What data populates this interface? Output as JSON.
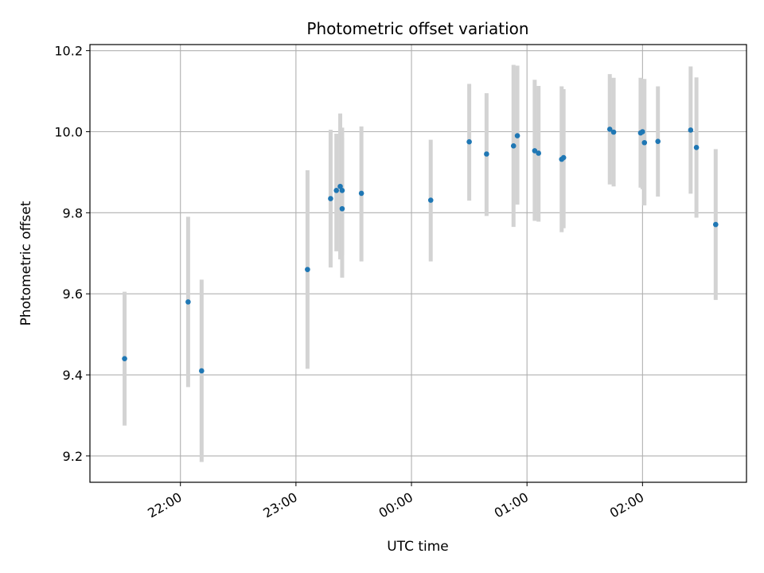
{
  "chart_data": {
    "type": "scatter",
    "title": "Photometric offset variation",
    "xlabel": "UTC time",
    "ylabel": "Photometric offset",
    "x_unit": "UTC time (HH:MM), night spanning midnight",
    "xlim": [
      "21:13",
      "02:54"
    ],
    "ylim": [
      9.135,
      10.215
    ],
    "x_ticks": [
      "22:00",
      "23:00",
      "00:00",
      "01:00",
      "02:00"
    ],
    "y_ticks": [
      9.2,
      9.4,
      9.6,
      9.8,
      10.0,
      10.2
    ],
    "y_tick_labels": [
      "9.2",
      "9.4",
      "9.6",
      "9.8",
      "10.0",
      "10.2"
    ],
    "grid": true,
    "marker_color": "#1f77b4",
    "errorbar_color": "#d3d3d3",
    "points": [
      {
        "x": "21:31",
        "y": 9.44,
        "yerr": [
          9.275,
          9.605
        ]
      },
      {
        "x": "22:04",
        "y": 9.58,
        "yerr": [
          9.37,
          9.79
        ]
      },
      {
        "x": "22:11",
        "y": 9.41,
        "yerr": [
          9.185,
          9.635
        ]
      },
      {
        "x": "23:06",
        "y": 9.66,
        "yerr": [
          9.415,
          9.905
        ]
      },
      {
        "x": "23:18",
        "y": 9.835,
        "yerr": [
          9.665,
          10.005
        ]
      },
      {
        "x": "23:21",
        "y": 9.855,
        "yerr": [
          9.705,
          9.995
        ]
      },
      {
        "x": "23:23",
        "y": 9.865,
        "yerr": [
          9.685,
          10.045
        ]
      },
      {
        "x": "23:24",
        "y": 9.855,
        "yerr": [
          9.695,
          10.01
        ]
      },
      {
        "x": "23:24",
        "y": 9.81,
        "yerr": [
          9.64,
          9.985
        ]
      },
      {
        "x": "23:34",
        "y": 9.848,
        "yerr": [
          9.68,
          10.013
        ]
      },
      {
        "x": "00:10",
        "y": 9.831,
        "yerr": [
          9.68,
          9.98
        ]
      },
      {
        "x": "00:30",
        "y": 9.975,
        "yerr": [
          9.83,
          10.118
        ]
      },
      {
        "x": "00:39",
        "y": 9.945,
        "yerr": [
          9.792,
          10.095
        ]
      },
      {
        "x": "00:53",
        "y": 9.965,
        "yerr": [
          9.765,
          10.165
        ]
      },
      {
        "x": "00:55",
        "y": 9.99,
        "yerr": [
          9.82,
          10.163
        ]
      },
      {
        "x": "01:04",
        "y": 9.953,
        "yerr": [
          9.78,
          10.128
        ]
      },
      {
        "x": "01:06",
        "y": 9.947,
        "yerr": [
          9.778,
          10.113
        ]
      },
      {
        "x": "01:18",
        "y": 9.932,
        "yerr": [
          9.752,
          10.112
        ]
      },
      {
        "x": "01:19",
        "y": 9.936,
        "yerr": [
          9.762,
          10.105
        ]
      },
      {
        "x": "01:43",
        "y": 10.006,
        "yerr": [
          9.87,
          10.142
        ]
      },
      {
        "x": "01:45",
        "y": 9.999,
        "yerr": [
          9.865,
          10.133
        ]
      },
      {
        "x": "01:59",
        "y": 9.997,
        "yerr": [
          9.862,
          10.133
        ]
      },
      {
        "x": "02:00",
        "y": 10.0,
        "yerr": [
          9.858,
          10.13
        ]
      },
      {
        "x": "02:01",
        "y": 9.973,
        "yerr": [
          9.818,
          10.13
        ]
      },
      {
        "x": "02:08",
        "y": 9.976,
        "yerr": [
          9.84,
          10.112
        ]
      },
      {
        "x": "02:25",
        "y": 10.004,
        "yerr": [
          9.847,
          10.161
        ]
      },
      {
        "x": "02:28",
        "y": 9.961,
        "yerr": [
          9.788,
          10.134
        ]
      },
      {
        "x": "02:38",
        "y": 9.771,
        "yerr": [
          9.585,
          9.957
        ]
      }
    ]
  }
}
